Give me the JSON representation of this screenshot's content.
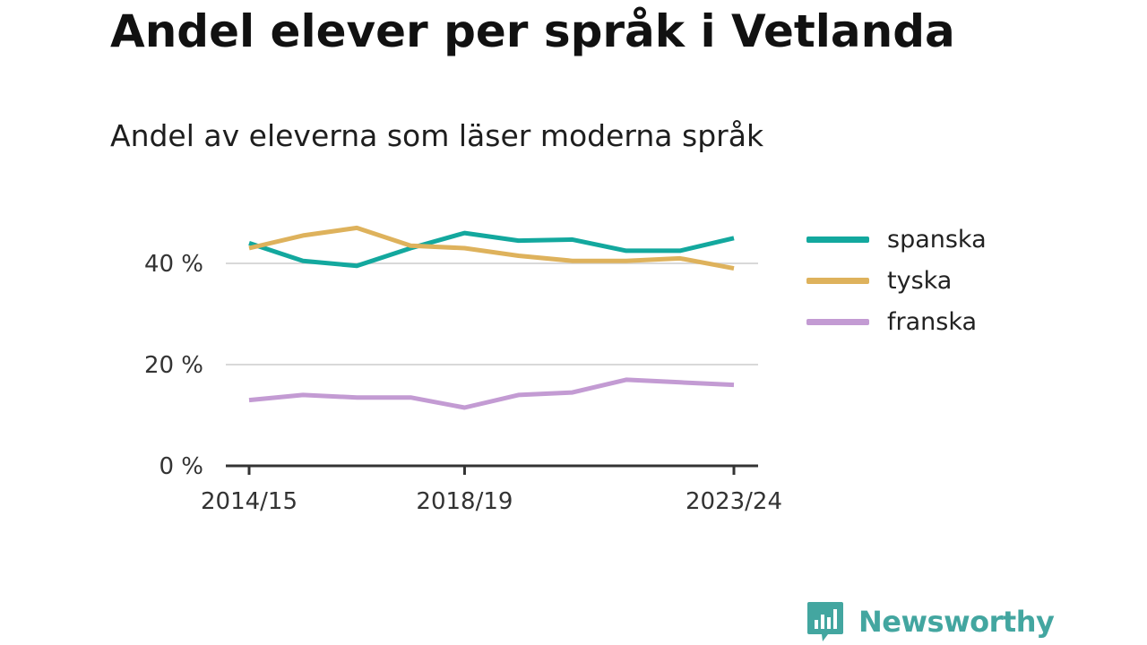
{
  "title": "Andel elever per språk i Vetlanda",
  "subtitle": "Andel av eleverna som läser moderna språk",
  "brand": {
    "name": "Newsworthy",
    "color": "#43a6a0"
  },
  "chart_data": {
    "type": "line",
    "x": [
      "2014/15",
      "2015/16",
      "2016/17",
      "2017/18",
      "2018/19",
      "2019/20",
      "2020/21",
      "2021/22",
      "2022/23",
      "2023/24"
    ],
    "x_tick_labels": [
      "2014/15",
      "2018/19",
      "2023/24"
    ],
    "y_tick_labels": [
      "0 %",
      "20 %",
      "40 %"
    ],
    "ylim": [
      0,
      50
    ],
    "y_ticks": [
      0,
      20,
      40
    ],
    "grid": true,
    "legend_position": "right",
    "series": [
      {
        "name": "spanska",
        "color": "#13a89e",
        "values": [
          44,
          40.5,
          39.5,
          43,
          46,
          44.5,
          44.7,
          42.5,
          42.5,
          45
        ]
      },
      {
        "name": "tyska",
        "color": "#deb25c",
        "values": [
          43,
          45.5,
          47,
          43.5,
          43,
          41.5,
          40.5,
          40.5,
          41,
          39
        ]
      },
      {
        "name": "franska",
        "color": "#c39bd3",
        "values": [
          13,
          14,
          13.5,
          13.5,
          11.5,
          14,
          14.5,
          17,
          16.5,
          16
        ]
      }
    ]
  }
}
